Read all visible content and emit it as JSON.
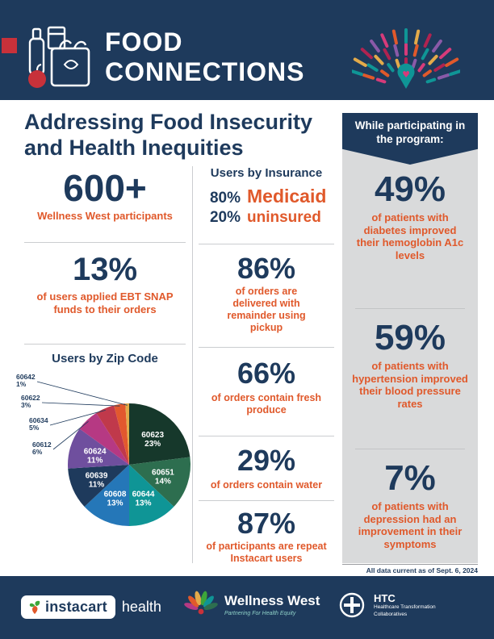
{
  "header": {
    "title_line1": "FOOD",
    "title_line2": "CONNECTIONS"
  },
  "title": {
    "line1": "Addressing Food Insecurity",
    "line2": "and Health Inequities"
  },
  "left_column": {
    "participants": {
      "value": "600+",
      "label": "Wellness West participants"
    },
    "ebt": {
      "value": "13%",
      "label": "of users applied EBT SNAP funds to their orders"
    },
    "pie_heading": "Users by Zip Code"
  },
  "insurance": {
    "heading": "Users by Insurance",
    "rows": [
      {
        "pct": "80%",
        "label": "Medicaid"
      },
      {
        "pct": "20%",
        "label": "uninsured"
      }
    ]
  },
  "middle_stats": [
    {
      "value": "86%",
      "label": "of orders are delivered with remainder using pickup"
    },
    {
      "value": "66%",
      "label": "of orders contain fresh produce"
    },
    {
      "value": "29%",
      "label": "of orders contain water"
    },
    {
      "value": "87%",
      "label": "of participants are repeat Instacart users"
    }
  ],
  "right_panel": {
    "banner": "While participating in the program:",
    "stats": [
      {
        "value": "49%",
        "label": "of patients with diabetes improved their hemoglobin A1c levels"
      },
      {
        "value": "59%",
        "label": "of patients with hypertension improved their blood pressure rates"
      },
      {
        "value": "7%",
        "label": "of patients with depression had an improvement in their symptoms"
      }
    ],
    "footnote": "All data current as of Sept. 6, 2024"
  },
  "footer": {
    "instacart_word": "instacart",
    "instacart_suffix": "health",
    "wellness_name": "Wellness West",
    "wellness_tagline": "Partnering For Health Equity",
    "htc_abbr": "HTC",
    "htc_name_line1": "Healthcare Transformation",
    "htc_name_line2": "Collaboratives"
  },
  "chart_data": {
    "type": "pie",
    "title": "Users by Zip Code",
    "labels": [
      "60623",
      "60651",
      "60644",
      "60608",
      "60639",
      "60624",
      "60612",
      "60634",
      "60622",
      "60642"
    ],
    "values": [
      23,
      14,
      13,
      13,
      11,
      11,
      6,
      5,
      3,
      1
    ],
    "colors": [
      "#16382b",
      "#2d6e4f",
      "#0f9596",
      "#2577b8",
      "#1e3a5c",
      "#6f4f9e",
      "#b63983",
      "#c0394b",
      "#e2582e",
      "#e3aa4a"
    ],
    "legend_position": "labels-on-slices-and-outside"
  },
  "colors": {
    "navy": "#1e3a5c",
    "orange": "#e0592b",
    "panel_gray": "#d9dadb",
    "accent_red": "#c8313a"
  }
}
